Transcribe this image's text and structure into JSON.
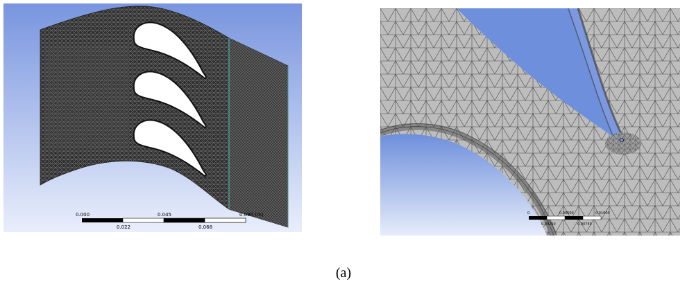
{
  "figure": {
    "caption": "(a)",
    "background_gradient": [
      "#7895df",
      "#e9eefb"
    ],
    "mesh_color": "#4a4a4a",
    "mesh_fine_color": "#9a9a9a"
  },
  "left_panel": {
    "scale_bar": {
      "top_labels": [
        "0.000",
        "0.045",
        "0.090 (m)"
      ],
      "bottom_labels": [
        "0.022",
        "0.068"
      ]
    },
    "interface_line_color": "#4fa9a0"
  },
  "right_panel": {
    "scale_bar": {
      "top_labels": [
        "0",
        "0.00500",
        "0.01000"
      ],
      "bottom_labels": [
        "0.00250",
        "0.00750"
      ]
    }
  }
}
